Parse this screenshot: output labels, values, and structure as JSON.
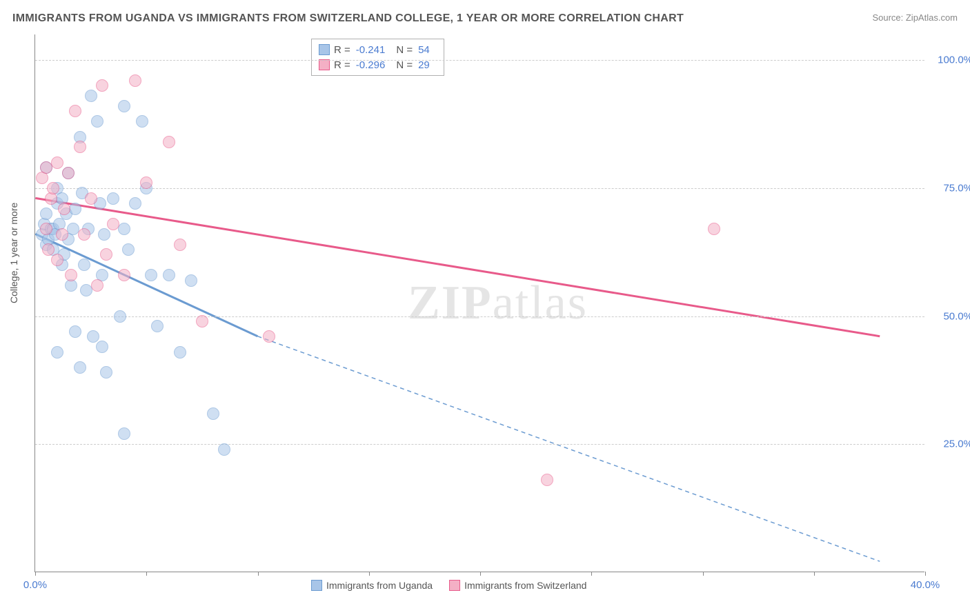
{
  "title": "IMMIGRANTS FROM UGANDA VS IMMIGRANTS FROM SWITZERLAND COLLEGE, 1 YEAR OR MORE CORRELATION CHART",
  "source": "Source: ZipAtlas.com",
  "ylabel": "College, 1 year or more",
  "watermark_zip": "ZIP",
  "watermark_atlas": "atlas",
  "chart": {
    "type": "scatter",
    "background_color": "#ffffff",
    "grid_color": "#cccccc",
    "axis_color": "#888888",
    "tick_label_color": "#4a7bd0",
    "label_color": "#555555",
    "title_fontsize": 16,
    "label_fontsize": 14,
    "tick_fontsize": 15,
    "xlim": [
      0,
      40
    ],
    "ylim": [
      0,
      105
    ],
    "xticks": [
      0,
      5,
      10,
      15,
      20,
      25,
      30,
      35,
      40
    ],
    "xtick_labels": [
      "0.0%",
      "",
      "",
      "",
      "",
      "",
      "",
      "",
      "40.0%"
    ],
    "yticks": [
      25,
      50,
      75,
      100
    ],
    "ytick_labels": [
      "25.0%",
      "50.0%",
      "75.0%",
      "100.0%"
    ],
    "marker_radius": 9,
    "marker_opacity": 0.55,
    "line_width_solid": 3,
    "line_width_dashed": 1.5,
    "series": [
      {
        "name": "Immigrants from Uganda",
        "color": "#6b9bd1",
        "fill": "#a8c5e8",
        "R": "-0.241",
        "N": "54",
        "regression": {
          "x1": 0,
          "y1": 66,
          "x2": 10,
          "y2": 46,
          "dashed_to_x": 38,
          "dashed_to_y": 2
        },
        "points": [
          [
            0.3,
            66
          ],
          [
            0.4,
            68
          ],
          [
            0.5,
            70
          ],
          [
            0.5,
            64
          ],
          [
            0.6,
            65
          ],
          [
            0.7,
            67
          ],
          [
            0.8,
            67
          ],
          [
            0.8,
            63
          ],
          [
            0.9,
            66
          ],
          [
            1.0,
            72
          ],
          [
            1.0,
            75
          ],
          [
            1.1,
            68
          ],
          [
            1.2,
            73
          ],
          [
            1.2,
            60
          ],
          [
            1.3,
            62
          ],
          [
            1.4,
            70
          ],
          [
            1.5,
            78
          ],
          [
            1.5,
            65
          ],
          [
            1.6,
            56
          ],
          [
            1.7,
            67
          ],
          [
            1.8,
            71
          ],
          [
            1.8,
            47
          ],
          [
            2.0,
            85
          ],
          [
            2.1,
            74
          ],
          [
            2.2,
            60
          ],
          [
            2.3,
            55
          ],
          [
            2.4,
            67
          ],
          [
            2.5,
            93
          ],
          [
            2.6,
            46
          ],
          [
            2.8,
            88
          ],
          [
            2.9,
            72
          ],
          [
            3.0,
            58
          ],
          [
            3.0,
            44
          ],
          [
            3.1,
            66
          ],
          [
            3.2,
            39
          ],
          [
            3.5,
            73
          ],
          [
            3.8,
            50
          ],
          [
            4.0,
            91
          ],
          [
            4.0,
            67
          ],
          [
            4.2,
            63
          ],
          [
            4.5,
            72
          ],
          [
            4.8,
            88
          ],
          [
            5.0,
            75
          ],
          [
            5.2,
            58
          ],
          [
            5.5,
            48
          ],
          [
            6.0,
            58
          ],
          [
            6.5,
            43
          ],
          [
            7.0,
            57
          ],
          [
            8.0,
            31
          ],
          [
            8.5,
            24
          ],
          [
            4.0,
            27
          ],
          [
            2.0,
            40
          ],
          [
            1.0,
            43
          ],
          [
            0.5,
            79
          ]
        ]
      },
      {
        "name": "Immigrants from Switzerland",
        "color": "#e85a8a",
        "fill": "#f4b0c5",
        "R": "-0.296",
        "N": "29",
        "regression": {
          "x1": 0,
          "y1": 73,
          "x2": 38,
          "y2": 46,
          "dashed_to_x": 38,
          "dashed_to_y": 46
        },
        "points": [
          [
            0.3,
            77
          ],
          [
            0.5,
            79
          ],
          [
            0.5,
            67
          ],
          [
            0.6,
            63
          ],
          [
            0.7,
            73
          ],
          [
            0.8,
            75
          ],
          [
            1.0,
            80
          ],
          [
            1.0,
            61
          ],
          [
            1.2,
            66
          ],
          [
            1.3,
            71
          ],
          [
            1.5,
            78
          ],
          [
            1.6,
            58
          ],
          [
            1.8,
            90
          ],
          [
            2.0,
            83
          ],
          [
            2.2,
            66
          ],
          [
            2.5,
            73
          ],
          [
            2.8,
            56
          ],
          [
            3.0,
            95
          ],
          [
            3.2,
            62
          ],
          [
            3.5,
            68
          ],
          [
            4.0,
            58
          ],
          [
            4.5,
            96
          ],
          [
            5.0,
            76
          ],
          [
            6.0,
            84
          ],
          [
            6.5,
            64
          ],
          [
            7.5,
            49
          ],
          [
            10.5,
            46
          ],
          [
            23.0,
            18
          ],
          [
            30.5,
            67
          ]
        ]
      }
    ]
  },
  "legend": [
    {
      "label": "Immigrants from Uganda",
      "swatch_fill": "#a8c5e8",
      "swatch_border": "#6b9bd1"
    },
    {
      "label": "Immigrants from Switzerland",
      "swatch_fill": "#f4b0c5",
      "swatch_border": "#e85a8a"
    }
  ]
}
